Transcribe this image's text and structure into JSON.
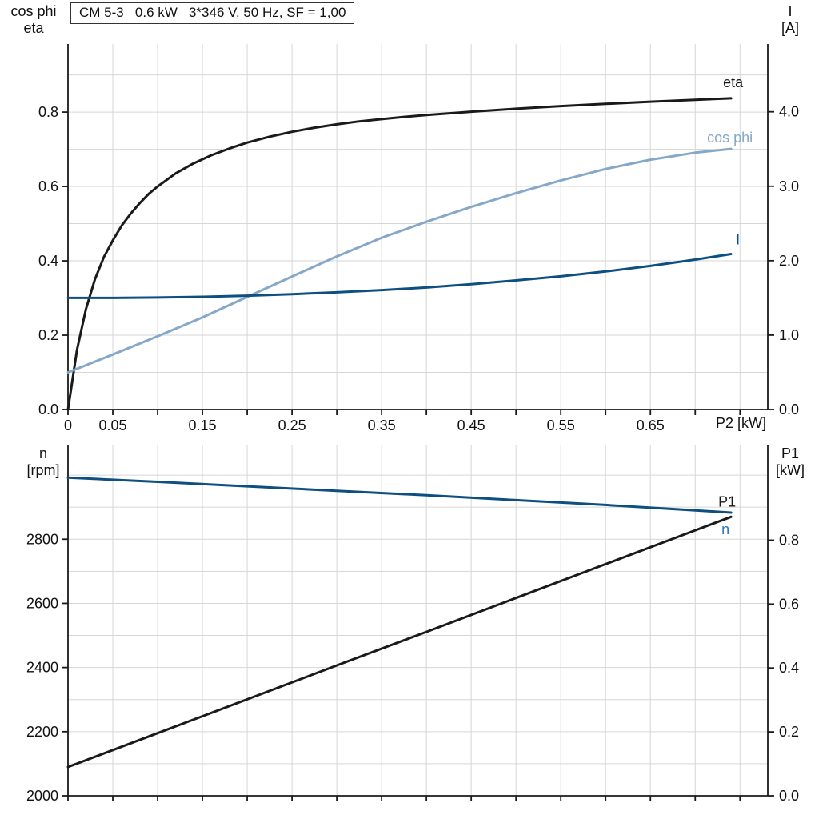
{
  "colors": {
    "black": "#1a1a1a",
    "light_blue": "#85a8c8",
    "dark_blue": "#0d4f80",
    "medium_blue": "#2f76ad",
    "grid": "#d6d6d6",
    "axis": "#1a1a1a"
  },
  "chart_data": [
    {
      "type": "line",
      "title": "CM 5-3   0.6 kW   3*346 V, 50 Hz, SF = 1,00",
      "x_axis": {
        "label": "P2 [kW]",
        "min": 0,
        "max": 0.781,
        "grid_step": 0.05,
        "tick_labels": [
          {
            "v": 0,
            "t": "0"
          },
          {
            "v": 0.05,
            "t": "0.05"
          },
          {
            "v": 0.15,
            "t": "0.15"
          },
          {
            "v": 0.25,
            "t": "0.25"
          },
          {
            "v": 0.35,
            "t": "0.35"
          },
          {
            "v": 0.45,
            "t": "0.45"
          },
          {
            "v": 0.55,
            "t": "0.55"
          },
          {
            "v": 0.65,
            "t": "0.65"
          }
        ]
      },
      "left_axis": {
        "label_lines": [
          "cos phi",
          "eta"
        ],
        "min": 0,
        "max": 0.983,
        "grid_step": 0.1,
        "ticks": [
          {
            "v": 0.0,
            "t": "0.0"
          },
          {
            "v": 0.2,
            "t": "0.2"
          },
          {
            "v": 0.4,
            "t": "0.4"
          },
          {
            "v": 0.6,
            "t": "0.6"
          },
          {
            "v": 0.8,
            "t": "0.8"
          }
        ]
      },
      "right_axis": {
        "label_lines": [
          "I",
          "[A]"
        ],
        "min": 0,
        "max": 4.91,
        "ticks": [
          {
            "v": 0.0,
            "t": "0.0"
          },
          {
            "v": 1.0,
            "t": "1.0"
          },
          {
            "v": 2.0,
            "t": "2.0"
          },
          {
            "v": 3.0,
            "t": "3.0"
          },
          {
            "v": 4.0,
            "t": "4.0"
          }
        ]
      },
      "series": [
        {
          "id": "eta",
          "label": "eta",
          "axis": "left",
          "color_key": "black",
          "label_dx": -10,
          "label_dy": -14,
          "points": [
            [
              0,
              0
            ],
            [
              0.01,
              0.16
            ],
            [
              0.02,
              0.27
            ],
            [
              0.03,
              0.35
            ],
            [
              0.04,
              0.41
            ],
            [
              0.05,
              0.455
            ],
            [
              0.06,
              0.495
            ],
            [
              0.07,
              0.527
            ],
            [
              0.08,
              0.555
            ],
            [
              0.09,
              0.58
            ],
            [
              0.1,
              0.6
            ],
            [
              0.12,
              0.635
            ],
            [
              0.14,
              0.662
            ],
            [
              0.16,
              0.684
            ],
            [
              0.18,
              0.702
            ],
            [
              0.2,
              0.718
            ],
            [
              0.225,
              0.734
            ],
            [
              0.25,
              0.747
            ],
            [
              0.275,
              0.758
            ],
            [
              0.3,
              0.767
            ],
            [
              0.325,
              0.775
            ],
            [
              0.35,
              0.781
            ],
            [
              0.375,
              0.787
            ],
            [
              0.4,
              0.792
            ],
            [
              0.45,
              0.801
            ],
            [
              0.5,
              0.809
            ],
            [
              0.55,
              0.816
            ],
            [
              0.6,
              0.822
            ],
            [
              0.65,
              0.828
            ],
            [
              0.7,
              0.833
            ],
            [
              0.74,
              0.837
            ]
          ]
        },
        {
          "id": "cos-phi",
          "label": "cos phi",
          "axis": "left",
          "color_key": "light_blue",
          "label_dx": -30,
          "label_dy": -8,
          "points": [
            [
              0,
              0.1
            ],
            [
              0.05,
              0.148
            ],
            [
              0.1,
              0.197
            ],
            [
              0.15,
              0.248
            ],
            [
              0.2,
              0.303
            ],
            [
              0.25,
              0.358
            ],
            [
              0.3,
              0.412
            ],
            [
              0.35,
              0.462
            ],
            [
              0.4,
              0.505
            ],
            [
              0.45,
              0.545
            ],
            [
              0.5,
              0.582
            ],
            [
              0.55,
              0.616
            ],
            [
              0.6,
              0.647
            ],
            [
              0.65,
              0.672
            ],
            [
              0.7,
              0.691
            ],
            [
              0.74,
              0.701
            ]
          ]
        },
        {
          "id": "current",
          "label": "I",
          "axis": "right",
          "color_key": "dark_blue",
          "label_dx": 6,
          "label_dy": -12,
          "points": [
            [
              0,
              1.5
            ],
            [
              0.05,
              1.5
            ],
            [
              0.1,
              1.505
            ],
            [
              0.15,
              1.515
            ],
            [
              0.2,
              1.53
            ],
            [
              0.25,
              1.55
            ],
            [
              0.3,
              1.575
            ],
            [
              0.35,
              1.605
            ],
            [
              0.4,
              1.64
            ],
            [
              0.45,
              1.685
            ],
            [
              0.5,
              1.735
            ],
            [
              0.55,
              1.79
            ],
            [
              0.6,
              1.855
            ],
            [
              0.65,
              1.93
            ],
            [
              0.7,
              2.015
            ],
            [
              0.74,
              2.09
            ]
          ]
        }
      ]
    },
    {
      "type": "line",
      "x_axis": {
        "min": 0,
        "max": 0.781,
        "grid_step": 0.05,
        "tick_labels": []
      },
      "left_axis": {
        "label_lines": [
          "n",
          "[rpm]"
        ],
        "min": 2000,
        "max": 3095,
        "grid_step": 100,
        "ticks": [
          {
            "v": 2000,
            "t": "2000"
          },
          {
            "v": 2200,
            "t": "2200"
          },
          {
            "v": 2400,
            "t": "2400"
          },
          {
            "v": 2600,
            "t": "2600"
          },
          {
            "v": 2800,
            "t": "2800"
          }
        ]
      },
      "right_axis": {
        "label_lines": [
          "P1",
          "[kW]"
        ],
        "min": 0,
        "max": 1.099,
        "ticks": [
          {
            "v": 0.0,
            "t": "0.0"
          },
          {
            "v": 0.2,
            "t": "0.2"
          },
          {
            "v": 0.4,
            "t": "0.4"
          },
          {
            "v": 0.6,
            "t": "0.6"
          },
          {
            "v": 0.8,
            "t": "0.8"
          }
        ]
      },
      "series": [
        {
          "id": "input-power",
          "label": "P1",
          "axis": "right",
          "color_key": "black",
          "label_dx": -16,
          "label_dy": -13,
          "points": [
            [
              0,
              0.09
            ],
            [
              0.1,
              0.196
            ],
            [
              0.2,
              0.302
            ],
            [
              0.3,
              0.408
            ],
            [
              0.4,
              0.513
            ],
            [
              0.5,
              0.619
            ],
            [
              0.6,
              0.725
            ],
            [
              0.7,
              0.831
            ],
            [
              0.74,
              0.873
            ]
          ]
        },
        {
          "id": "speed",
          "label": "n",
          "axis": "left",
          "color_key": "dark_blue",
          "label_color_key": "medium_blue",
          "label_dx": -12,
          "label_dy": 27,
          "points": [
            [
              0,
              2992
            ],
            [
              0.1,
              2979
            ],
            [
              0.2,
              2965
            ],
            [
              0.3,
              2951
            ],
            [
              0.4,
              2937
            ],
            [
              0.5,
              2922
            ],
            [
              0.6,
              2907
            ],
            [
              0.7,
              2890
            ],
            [
              0.74,
              2883
            ]
          ]
        }
      ]
    }
  ]
}
